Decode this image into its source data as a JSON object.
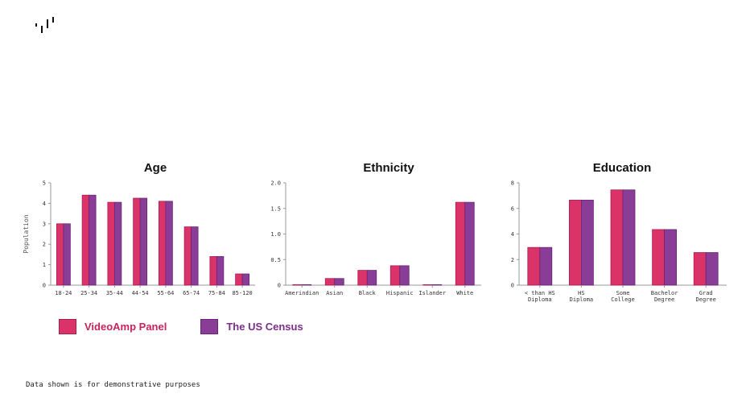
{
  "colors": {
    "videoamp": "#d9336a",
    "videoamp_edge": "#b01a4e",
    "census": "#8a3d96",
    "census_edge": "#6a2378",
    "axis": "#999999"
  },
  "icons": {
    "logo": "videoamp-logo-icon"
  },
  "legend": {
    "items": [
      {
        "label": "VideoAmp Panel",
        "color": "#d9336a",
        "text_color": "#c7245a"
      },
      {
        "label": "The US Census",
        "color": "#8a3d96",
        "text_color": "#7a2d8a"
      }
    ]
  },
  "footnote": "Data shown is for demonstrative purposes",
  "chart_data": [
    {
      "type": "bar",
      "title": "Age",
      "ylabel": "Population",
      "ylim": [
        0,
        5
      ],
      "yticks": [
        0,
        1,
        2,
        3,
        4,
        5
      ],
      "ytick_labels": [
        "0",
        "1",
        "2",
        "3",
        "4",
        "5"
      ],
      "categories": [
        [
          "18-24"
        ],
        [
          "25-34"
        ],
        [
          "35-44"
        ],
        [
          "44-54"
        ],
        [
          "55-64"
        ],
        [
          "65-74"
        ],
        [
          "75-84"
        ],
        [
          "85-120"
        ]
      ],
      "series": [
        {
          "name": "VideoAmp Panel",
          "values": [
            3.0,
            4.4,
            4.05,
            4.25,
            4.1,
            2.85,
            1.4,
            0.55
          ]
        },
        {
          "name": "The US Census",
          "values": [
            3.0,
            4.4,
            4.05,
            4.25,
            4.1,
            2.85,
            1.4,
            0.55
          ]
        }
      ]
    },
    {
      "type": "bar",
      "title": "Ethnicity",
      "ylabel": "",
      "ylim": [
        0,
        2.0
      ],
      "yticks": [
        0,
        0.5,
        1.0,
        1.5,
        2.0
      ],
      "ytick_labels": [
        "0",
        "0.5",
        "1.0",
        "1.5",
        "2.0"
      ],
      "categories": [
        [
          "Amerindian"
        ],
        [
          "Asian"
        ],
        [
          "Black"
        ],
        [
          "Hispanic"
        ],
        [
          "Islander"
        ],
        [
          "White"
        ]
      ],
      "series": [
        {
          "name": "VideoAmp Panel",
          "values": [
            0.01,
            0.13,
            0.29,
            0.38,
            0.0,
            1.62
          ]
        },
        {
          "name": "The US Census",
          "values": [
            0.01,
            0.13,
            0.29,
            0.38,
            0.0,
            1.62
          ]
        }
      ]
    },
    {
      "type": "bar",
      "title": "Education",
      "ylabel": "",
      "ylim": [
        0,
        8
      ],
      "yticks": [
        0,
        2,
        4,
        6,
        8
      ],
      "ytick_labels": [
        "0",
        "2",
        "4",
        "6",
        "8"
      ],
      "categories": [
        [
          "< than HS",
          "Diploma"
        ],
        [
          "HS",
          "Diploma"
        ],
        [
          "Some",
          "College"
        ],
        [
          "Bachelor",
          "Degree"
        ],
        [
          "Grad",
          "Degree"
        ]
      ],
      "series": [
        {
          "name": "VideoAmp Panel",
          "values": [
            2.95,
            6.65,
            7.45,
            4.35,
            2.55
          ]
        },
        {
          "name": "The US Census",
          "values": [
            2.95,
            6.65,
            7.45,
            4.35,
            2.55
          ]
        }
      ]
    }
  ]
}
